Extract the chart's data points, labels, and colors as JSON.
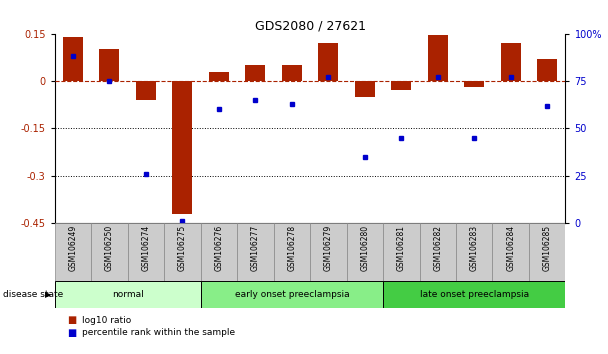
{
  "title": "GDS2080 / 27621",
  "samples": [
    "GSM106249",
    "GSM106250",
    "GSM106274",
    "GSM106275",
    "GSM106276",
    "GSM106277",
    "GSM106278",
    "GSM106279",
    "GSM106280",
    "GSM106281",
    "GSM106282",
    "GSM106283",
    "GSM106284",
    "GSM106285"
  ],
  "log10_ratio": [
    0.14,
    0.1,
    -0.06,
    -0.42,
    0.03,
    0.05,
    0.05,
    0.12,
    -0.05,
    -0.03,
    0.145,
    -0.02,
    0.12,
    0.07
  ],
  "percentile": [
    88,
    75,
    26,
    1,
    60,
    65,
    63,
    77,
    35,
    45,
    77,
    45,
    77,
    62
  ],
  "bar_color": "#aa2200",
  "dot_color": "#0000cc",
  "ylim_left": [
    -0.45,
    0.15
  ],
  "ylim_right": [
    0,
    100
  ],
  "yticks_left": [
    0.15,
    0.0,
    -0.15,
    -0.3,
    -0.45
  ],
  "yticks_right": [
    100,
    75,
    50,
    25,
    0
  ],
  "ytick_labels_right": [
    "100%",
    "75",
    "50",
    "25",
    "0"
  ],
  "hline_y": 0.0,
  "dotted_lines": [
    -0.15,
    -0.3
  ],
  "groups": [
    {
      "label": "normal",
      "start": 0,
      "end": 3,
      "color": "#ccffcc"
    },
    {
      "label": "early onset preeclampsia",
      "start": 4,
      "end": 8,
      "color": "#88ee88"
    },
    {
      "label": "late onset preeclampsia",
      "start": 9,
      "end": 13,
      "color": "#44cc44"
    }
  ],
  "legend_items": [
    {
      "label": "log10 ratio",
      "color": "#aa2200"
    },
    {
      "label": "percentile rank within the sample",
      "color": "#0000cc"
    }
  ],
  "disease_state_label": "disease state",
  "background_color": "#ffffff",
  "bar_width": 0.55
}
